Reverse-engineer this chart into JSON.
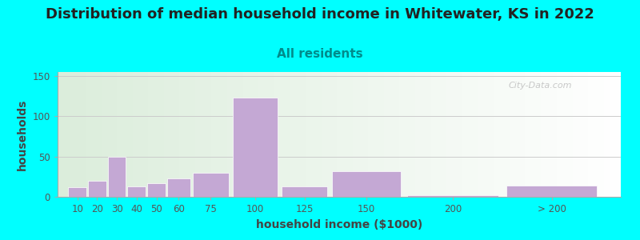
{
  "title": "Distribution of median household income in Whitewater, KS in 2022",
  "subtitle": "All residents",
  "xlabel": "household income ($1000)",
  "ylabel": "households",
  "title_fontsize": 13,
  "subtitle_fontsize": 11,
  "axis_label_fontsize": 10,
  "background_outer": "#00FFFF",
  "bar_color": "#C4A8D4",
  "categories": [
    "10",
    "20",
    "30",
    "40",
    "50",
    "60",
    "75",
    "100",
    "125",
    "150",
    "200",
    "> 200"
  ],
  "values": [
    12,
    20,
    50,
    13,
    17,
    23,
    30,
    123,
    13,
    32,
    2,
    14
  ],
  "left_edges": [
    5,
    15,
    25,
    35,
    45,
    55,
    67.5,
    87.5,
    112.5,
    137.5,
    175,
    225
  ],
  "widths": [
    10,
    10,
    10,
    10,
    10,
    12.5,
    20,
    25,
    25,
    37.5,
    50,
    50
  ],
  "ylim": [
    0,
    155
  ],
  "yticks": [
    0,
    50,
    100,
    150
  ],
  "xlim_min": 0,
  "xlim_max": 285,
  "watermark": "City-Data.com"
}
